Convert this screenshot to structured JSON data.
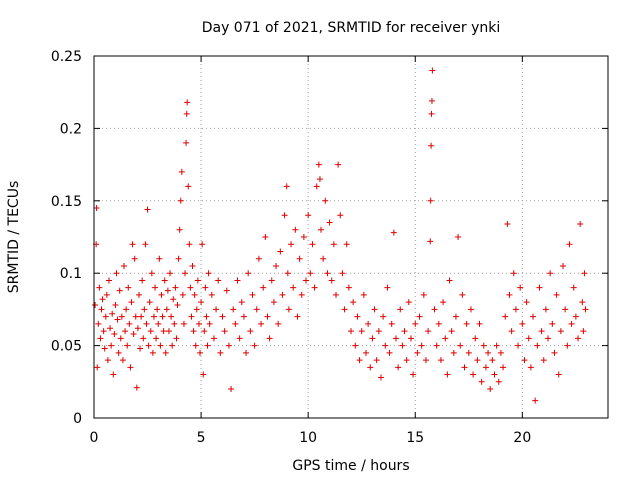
{
  "chart_data": {
    "type": "scatter",
    "title": "Day 071 of 2021, SRMTID for receiver ynki",
    "xlabel": "GPS time / hours",
    "ylabel": "SRMTID / TECUs",
    "xlim": [
      0,
      24
    ],
    "ylim": [
      0,
      0.25
    ],
    "x_ticks": [
      0,
      5,
      10,
      15,
      20
    ],
    "x_tick_labels": [
      "0",
      "5",
      "10",
      "15",
      "20"
    ],
    "y_ticks": [
      0,
      0.05,
      0.1,
      0.15,
      0.2,
      0.25
    ],
    "y_tick_labels": [
      "0",
      "0.05",
      "0.1",
      "0.15",
      "0.2",
      "0.25"
    ],
    "grid": true,
    "marker": "+",
    "color": "#e00000",
    "series": [
      {
        "name": "SRMTID",
        "points": [
          [
            0.05,
            0.078
          ],
          [
            0.1,
            0.12
          ],
          [
            0.12,
            0.145
          ],
          [
            0.15,
            0.035
          ],
          [
            0.2,
            0.065
          ],
          [
            0.25,
            0.09
          ],
          [
            0.3,
            0.055
          ],
          [
            0.35,
            0.075
          ],
          [
            0.4,
            0.082
          ],
          [
            0.45,
            0.06
          ],
          [
            0.5,
            0.048
          ],
          [
            0.55,
            0.07
          ],
          [
            0.6,
            0.085
          ],
          [
            0.65,
            0.04
          ],
          [
            0.7,
            0.095
          ],
          [
            0.75,
            0.062
          ],
          [
            0.8,
            0.05
          ],
          [
            0.85,
            0.072
          ],
          [
            0.9,
            0.03
          ],
          [
            0.95,
            0.058
          ],
          [
            1.0,
            0.078
          ],
          [
            1.05,
            0.1
          ],
          [
            1.1,
            0.068
          ],
          [
            1.15,
            0.045
          ],
          [
            1.2,
            0.088
          ],
          [
            1.25,
            0.055
          ],
          [
            1.3,
            0.07
          ],
          [
            1.35,
            0.04
          ],
          [
            1.4,
            0.105
          ],
          [
            1.45,
            0.06
          ],
          [
            1.5,
            0.075
          ],
          [
            1.55,
            0.05
          ],
          [
            1.6,
            0.09
          ],
          [
            1.65,
            0.065
          ],
          [
            1.7,
            0.035
          ],
          [
            1.75,
            0.08
          ],
          [
            1.8,
            0.12
          ],
          [
            1.85,
            0.058
          ],
          [
            1.9,
            0.11
          ],
          [
            1.95,
            0.07
          ],
          [
            2.0,
            0.021
          ],
          [
            2.05,
            0.062
          ],
          [
            2.1,
            0.085
          ],
          [
            2.15,
            0.048
          ],
          [
            2.2,
            0.07
          ],
          [
            2.25,
            0.095
          ],
          [
            2.3,
            0.055
          ],
          [
            2.35,
            0.075
          ],
          [
            2.4,
            0.12
          ],
          [
            2.45,
            0.065
          ],
          [
            2.5,
            0.144
          ],
          [
            2.55,
            0.05
          ],
          [
            2.6,
            0.08
          ],
          [
            2.65,
            0.06
          ],
          [
            2.7,
            0.1
          ],
          [
            2.75,
            0.045
          ],
          [
            2.8,
            0.07
          ],
          [
            2.85,
            0.09
          ],
          [
            2.9,
            0.055
          ],
          [
            2.95,
            0.075
          ],
          [
            3.0,
            0.065
          ],
          [
            3.05,
            0.11
          ],
          [
            3.1,
            0.05
          ],
          [
            3.15,
            0.085
          ],
          [
            3.2,
            0.07
          ],
          [
            3.25,
            0.06
          ],
          [
            3.3,
            0.095
          ],
          [
            3.35,
            0.045
          ],
          [
            3.4,
            0.075
          ],
          [
            3.45,
            0.088
          ],
          [
            3.5,
            0.06
          ],
          [
            3.55,
            0.1
          ],
          [
            3.6,
            0.07
          ],
          [
            3.65,
            0.05
          ],
          [
            3.7,
            0.082
          ],
          [
            3.75,
            0.065
          ],
          [
            3.8,
            0.09
          ],
          [
            3.85,
            0.055
          ],
          [
            3.9,
            0.078
          ],
          [
            3.95,
            0.11
          ],
          [
            4.0,
            0.13
          ],
          [
            4.05,
            0.15
          ],
          [
            4.1,
            0.17
          ],
          [
            4.15,
            0.085
          ],
          [
            4.2,
            0.065
          ],
          [
            4.25,
            0.1
          ],
          [
            4.3,
            0.19
          ],
          [
            4.33,
            0.21
          ],
          [
            4.35,
            0.218
          ],
          [
            4.4,
            0.16
          ],
          [
            4.45,
            0.12
          ],
          [
            4.5,
            0.09
          ],
          [
            4.55,
            0.07
          ],
          [
            4.6,
            0.105
          ],
          [
            4.65,
            0.06
          ],
          [
            4.7,
            0.085
          ],
          [
            4.75,
            0.05
          ],
          [
            4.8,
            0.075
          ],
          [
            4.85,
            0.095
          ],
          [
            4.9,
            0.065
          ],
          [
            4.95,
            0.045
          ],
          [
            5.0,
            0.08
          ],
          [
            5.05,
            0.12
          ],
          [
            5.1,
            0.03
          ],
          [
            5.15,
            0.06
          ],
          [
            5.2,
            0.09
          ],
          [
            5.25,
            0.07
          ],
          [
            5.3,
            0.05
          ],
          [
            5.35,
            0.1
          ],
          [
            5.4,
            0.065
          ],
          [
            5.5,
            0.085
          ],
          [
            5.6,
            0.055
          ],
          [
            5.7,
            0.075
          ],
          [
            5.8,
            0.095
          ],
          [
            5.9,
            0.045
          ],
          [
            6.0,
            0.07
          ],
          [
            6.1,
            0.06
          ],
          [
            6.2,
            0.088
          ],
          [
            6.3,
            0.05
          ],
          [
            6.4,
            0.02
          ],
          [
            6.5,
            0.075
          ],
          [
            6.6,
            0.065
          ],
          [
            6.7,
            0.095
          ],
          [
            6.8,
            0.055
          ],
          [
            6.9,
            0.08
          ],
          [
            7.0,
            0.07
          ],
          [
            7.1,
            0.045
          ],
          [
            7.2,
            0.1
          ],
          [
            7.3,
            0.06
          ],
          [
            7.4,
            0.085
          ],
          [
            7.5,
            0.05
          ],
          [
            7.6,
            0.075
          ],
          [
            7.7,
            0.11
          ],
          [
            7.8,
            0.065
          ],
          [
            7.9,
            0.09
          ],
          [
            8.0,
            0.125
          ],
          [
            8.1,
            0.07
          ],
          [
            8.2,
            0.055
          ],
          [
            8.3,
            0.095
          ],
          [
            8.4,
            0.08
          ],
          [
            8.5,
            0.105
          ],
          [
            8.6,
            0.065
          ],
          [
            8.7,
            0.115
          ],
          [
            8.8,
            0.085
          ],
          [
            8.9,
            0.14
          ],
          [
            9.0,
            0.16
          ],
          [
            9.05,
            0.1
          ],
          [
            9.1,
            0.075
          ],
          [
            9.2,
            0.12
          ],
          [
            9.3,
            0.09
          ],
          [
            9.4,
            0.13
          ],
          [
            9.5,
            0.07
          ],
          [
            9.6,
            0.11
          ],
          [
            9.7,
            0.085
          ],
          [
            9.8,
            0.125
          ],
          [
            9.9,
            0.095
          ],
          [
            10.0,
            0.14
          ],
          [
            10.1,
            0.1
          ],
          [
            10.2,
            0.12
          ],
          [
            10.3,
            0.09
          ],
          [
            10.4,
            0.16
          ],
          [
            10.5,
            0.175
          ],
          [
            10.55,
            0.165
          ],
          [
            10.6,
            0.13
          ],
          [
            10.7,
            0.11
          ],
          [
            10.8,
            0.15
          ],
          [
            10.9,
            0.1
          ],
          [
            11.0,
            0.135
          ],
          [
            11.1,
            0.095
          ],
          [
            11.2,
            0.12
          ],
          [
            11.3,
            0.085
          ],
          [
            11.4,
            0.175
          ],
          [
            11.5,
            0.14
          ],
          [
            11.6,
            0.1
          ],
          [
            11.7,
            0.075
          ],
          [
            11.8,
            0.12
          ],
          [
            11.9,
            0.09
          ],
          [
            12.0,
            0.06
          ],
          [
            12.1,
            0.08
          ],
          [
            12.2,
            0.05
          ],
          [
            12.3,
            0.07
          ],
          [
            12.4,
            0.04
          ],
          [
            12.5,
            0.06
          ],
          [
            12.6,
            0.085
          ],
          [
            12.7,
            0.045
          ],
          [
            12.8,
            0.065
          ],
          [
            12.9,
            0.035
          ],
          [
            13.0,
            0.055
          ],
          [
            13.1,
            0.075
          ],
          [
            13.2,
            0.04
          ],
          [
            13.3,
            0.06
          ],
          [
            13.4,
            0.028
          ],
          [
            13.5,
            0.07
          ],
          [
            13.6,
            0.05
          ],
          [
            13.7,
            0.09
          ],
          [
            13.8,
            0.045
          ],
          [
            13.9,
            0.065
          ],
          [
            14.0,
            0.128
          ],
          [
            14.1,
            0.055
          ],
          [
            14.2,
            0.035
          ],
          [
            14.3,
            0.075
          ],
          [
            14.4,
            0.05
          ],
          [
            14.5,
            0.06
          ],
          [
            14.6,
            0.04
          ],
          [
            14.7,
            0.08
          ],
          [
            14.8,
            0.055
          ],
          [
            14.9,
            0.03
          ],
          [
            15.0,
            0.065
          ],
          [
            15.1,
            0.045
          ],
          [
            15.2,
            0.07
          ],
          [
            15.3,
            0.05
          ],
          [
            15.4,
            0.085
          ],
          [
            15.5,
            0.04
          ],
          [
            15.6,
            0.06
          ],
          [
            15.7,
            0.122
          ],
          [
            15.72,
            0.15
          ],
          [
            15.74,
            0.188
          ],
          [
            15.76,
            0.21
          ],
          [
            15.78,
            0.219
          ],
          [
            15.8,
            0.24
          ],
          [
            15.9,
            0.075
          ],
          [
            16.0,
            0.05
          ],
          [
            16.1,
            0.065
          ],
          [
            16.2,
            0.04
          ],
          [
            16.3,
            0.08
          ],
          [
            16.4,
            0.055
          ],
          [
            16.5,
            0.03
          ],
          [
            16.6,
            0.095
          ],
          [
            16.7,
            0.06
          ],
          [
            16.8,
            0.045
          ],
          [
            16.9,
            0.07
          ],
          [
            17.0,
            0.125
          ],
          [
            17.1,
            0.05
          ],
          [
            17.2,
            0.085
          ],
          [
            17.3,
            0.035
          ],
          [
            17.4,
            0.065
          ],
          [
            17.5,
            0.045
          ],
          [
            17.6,
            0.075
          ],
          [
            17.7,
            0.03
          ],
          [
            17.8,
            0.055
          ],
          [
            17.9,
            0.04
          ],
          [
            18.0,
            0.065
          ],
          [
            18.1,
            0.025
          ],
          [
            18.2,
            0.05
          ],
          [
            18.3,
            0.035
          ],
          [
            18.4,
            0.045
          ],
          [
            18.5,
            0.02
          ],
          [
            18.6,
            0.04
          ],
          [
            18.7,
            0.03
          ],
          [
            18.8,
            0.05
          ],
          [
            18.9,
            0.025
          ],
          [
            19.0,
            0.045
          ],
          [
            19.1,
            0.035
          ],
          [
            19.2,
            0.07
          ],
          [
            19.3,
            0.134
          ],
          [
            19.4,
            0.085
          ],
          [
            19.5,
            0.06
          ],
          [
            19.6,
            0.1
          ],
          [
            19.7,
            0.075
          ],
          [
            19.8,
            0.05
          ],
          [
            19.9,
            0.09
          ],
          [
            20.0,
            0.065
          ],
          [
            20.1,
            0.04
          ],
          [
            20.2,
            0.08
          ],
          [
            20.3,
            0.055
          ],
          [
            20.4,
            0.035
          ],
          [
            20.5,
            0.07
          ],
          [
            20.6,
            0.012
          ],
          [
            20.7,
            0.05
          ],
          [
            20.8,
            0.09
          ],
          [
            20.9,
            0.06
          ],
          [
            21.0,
            0.04
          ],
          [
            21.1,
            0.075
          ],
          [
            21.2,
            0.055
          ],
          [
            21.3,
            0.1
          ],
          [
            21.4,
            0.065
          ],
          [
            21.5,
            0.045
          ],
          [
            21.6,
            0.085
          ],
          [
            21.7,
            0.03
          ],
          [
            21.8,
            0.06
          ],
          [
            21.9,
            0.105
          ],
          [
            22.0,
            0.075
          ],
          [
            22.1,
            0.05
          ],
          [
            22.2,
            0.12
          ],
          [
            22.3,
            0.065
          ],
          [
            22.4,
            0.09
          ],
          [
            22.5,
            0.07
          ],
          [
            22.6,
            0.055
          ],
          [
            22.7,
            0.134
          ],
          [
            22.8,
            0.08
          ],
          [
            22.85,
            0.06
          ],
          [
            22.9,
            0.1
          ],
          [
            22.95,
            0.075
          ]
        ]
      }
    ]
  }
}
